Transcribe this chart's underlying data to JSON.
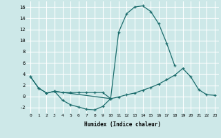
{
  "xlabel": "Humidex (Indice chaleur)",
  "x": [
    0,
    1,
    2,
    3,
    4,
    5,
    6,
    7,
    8,
    9,
    10,
    11,
    12,
    13,
    14,
    15,
    16,
    17,
    18,
    19,
    20,
    21,
    22,
    23
  ],
  "line1": [
    3.5,
    1.5,
    0.6,
    0.9,
    null,
    null,
    null,
    null,
    null,
    null,
    -0.4,
    11.5,
    14.8,
    16.0,
    16.2,
    15.2,
    13.0,
    9.5,
    5.5,
    null,
    null,
    null,
    null,
    null
  ],
  "line2": [
    3.5,
    1.5,
    0.6,
    0.9,
    0.7,
    0.7,
    0.7,
    0.7,
    0.7,
    0.7,
    -0.4,
    -0.1,
    0.3,
    0.6,
    1.1,
    1.6,
    2.2,
    3.0,
    3.8,
    5.0,
    3.5,
    1.2,
    0.3,
    0.2
  ],
  "line3": [
    null,
    null,
    null,
    0.9,
    -0.7,
    -1.5,
    -1.9,
    -2.3,
    -2.4,
    -1.8,
    -0.4,
    null,
    null,
    null,
    null,
    null,
    null,
    null,
    null,
    null,
    null,
    null,
    null,
    null
  ],
  "bg_color": "#cde8e8",
  "grid_color": "#ffffff",
  "line_color": "#1a6b6b",
  "ylim": [
    -3,
    17
  ],
  "yticks": [
    -2,
    0,
    2,
    4,
    6,
    8,
    10,
    12,
    14,
    16
  ],
  "xticks": [
    0,
    1,
    2,
    3,
    4,
    5,
    6,
    7,
    8,
    9,
    10,
    11,
    12,
    13,
    14,
    15,
    16,
    17,
    18,
    19,
    20,
    21,
    22,
    23
  ]
}
